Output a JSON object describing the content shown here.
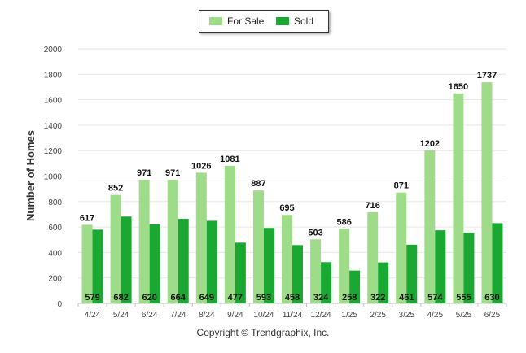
{
  "chart_data": {
    "type": "bar",
    "ylabel": "Number of Homes",
    "ylim": [
      0,
      2000
    ],
    "yticks": [
      0,
      200,
      400,
      600,
      800,
      1000,
      1200,
      1400,
      1600,
      1800,
      2000
    ],
    "categories": [
      "4/24",
      "5/24",
      "6/24",
      "7/24",
      "8/24",
      "9/24",
      "10/24",
      "11/24",
      "12/24",
      "1/25",
      "2/25",
      "3/25",
      "4/25",
      "5/25",
      "6/25"
    ],
    "series": [
      {
        "name": "For Sale",
        "color": "#9fdc8a",
        "values": [
          617,
          852,
          971,
          971,
          1026,
          1081,
          887,
          695,
          503,
          586,
          716,
          871,
          1202,
          1650,
          1737
        ]
      },
      {
        "name": "Sold",
        "color": "#1aa832",
        "values": [
          579,
          682,
          620,
          664,
          649,
          477,
          593,
          458,
          324,
          258,
          322,
          461,
          574,
          555,
          630
        ]
      }
    ],
    "grid": true,
    "legend_position": "top-center"
  },
  "legend": {
    "for_sale": "For Sale",
    "sold": "Sold"
  },
  "footer": {
    "copyright": "Copyright © Trendgraphix, Inc."
  }
}
